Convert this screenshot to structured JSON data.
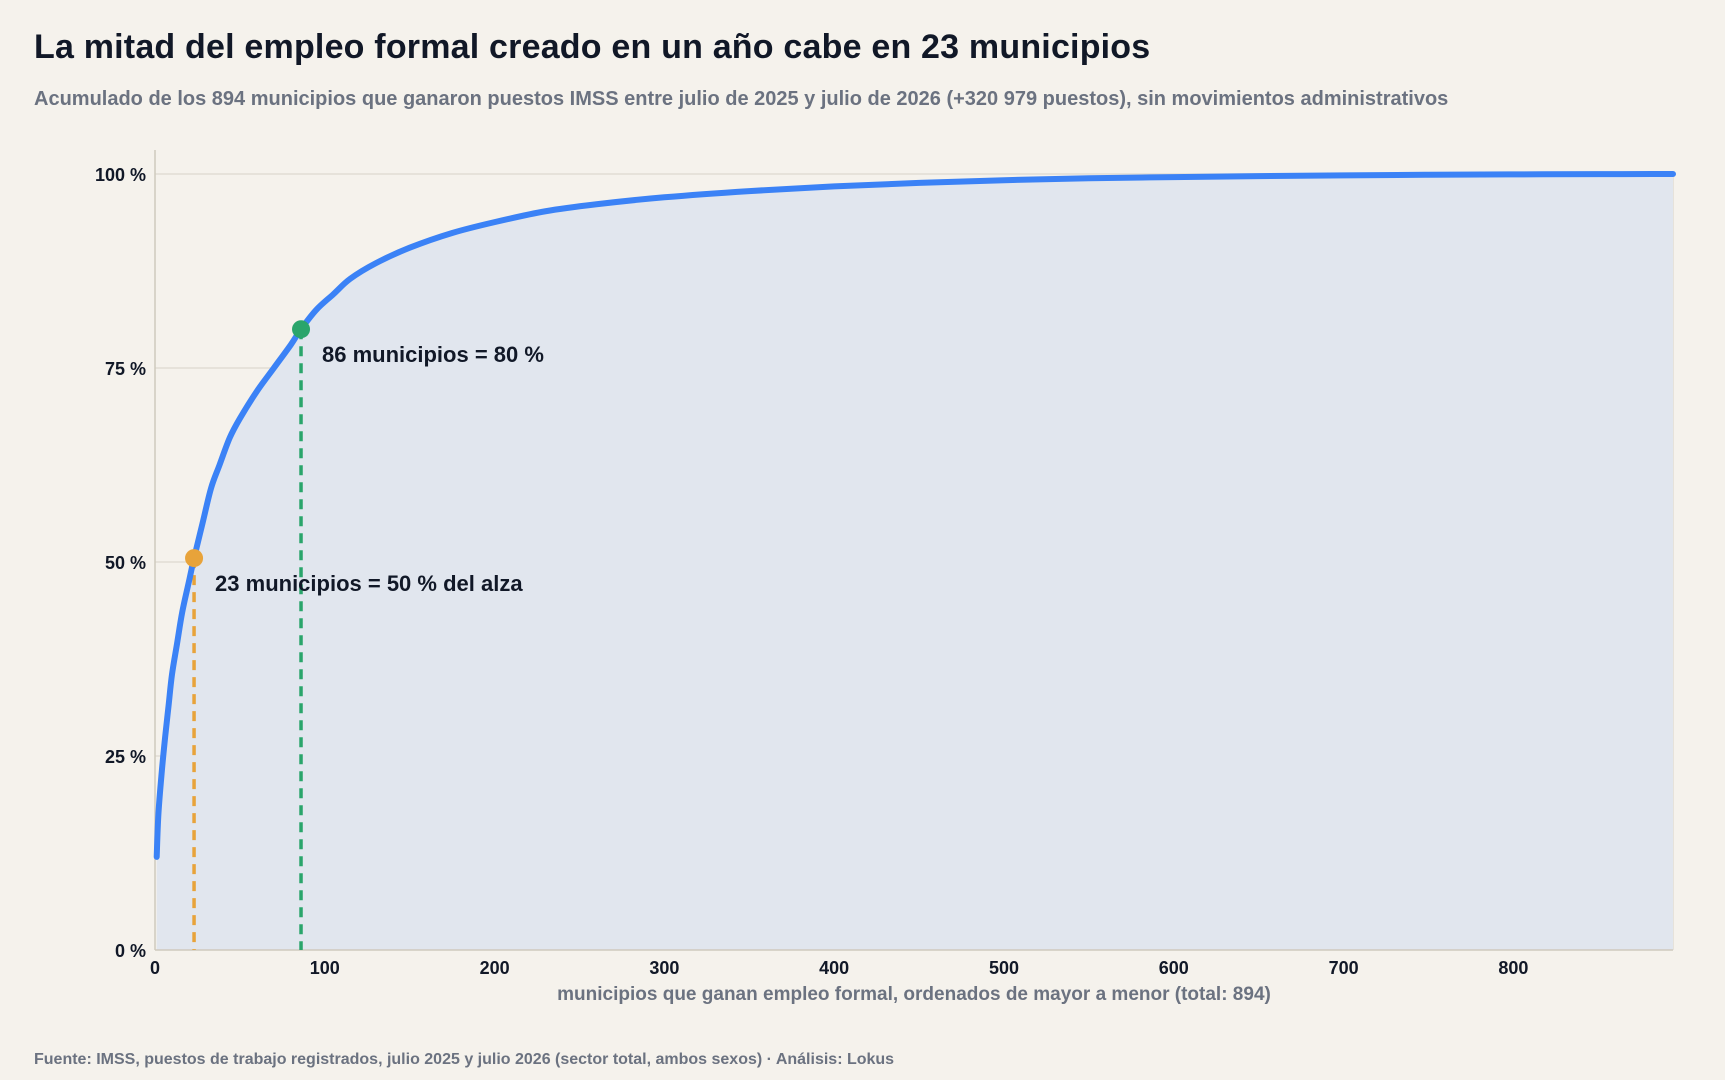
{
  "title": "La mitad del empleo formal creado en un año cabe en 23 municipios",
  "subtitle": "Acumulado de los 894 municipios que ganaron puestos IMSS entre julio de 2025 y julio de 2026 (+320 979 puestos), sin movimientos administrativos",
  "footer": "Fuente: IMSS, puestos de trabajo registrados, julio 2025 y julio 2026 (sector total, ambos sexos) · Análisis: Lokus",
  "colors": {
    "background": "#f5f2ec",
    "curve": "#3b82f6",
    "area": "#e1e6ee",
    "marker50": "#e8a33a",
    "marker80": "#2aa56b",
    "grid": "#e2ddd3"
  },
  "chart_data": {
    "type": "area",
    "xlabel": "municipios que ganan empleo formal, ordenados de mayor a menor (total: 894)",
    "ylabel": "",
    "xlim": [
      0,
      894
    ],
    "ylim": [
      0,
      100
    ],
    "x_ticks": [
      0,
      100,
      200,
      300,
      400,
      500,
      600,
      700,
      800
    ],
    "y_ticks": [
      0,
      25,
      50,
      75,
      100
    ],
    "y_tick_labels": [
      "0 %",
      "25 %",
      "50 %",
      "75 %",
      "100 %"
    ],
    "grid": "horizontal",
    "series": [
      {
        "x": [
          1,
          2,
          4,
          6,
          8,
          10,
          13,
          16,
          20,
          23,
          28,
          33,
          38,
          44,
          50,
          60,
          70,
          80,
          86,
          95,
          105,
          115,
          130,
          150,
          175,
          200,
          230,
          260,
          300,
          350,
          400,
          450,
          500,
          550,
          600,
          650,
          700,
          750,
          800,
          850,
          894
        ],
        "y": [
          12,
          17.5,
          23,
          27.5,
          31.5,
          35.5,
          39.5,
          43.5,
          47.5,
          50.5,
          55,
          59.5,
          62.5,
          66,
          68.5,
          72,
          75,
          78,
          80,
          82.5,
          84.5,
          86.5,
          88.5,
          90.5,
          92.4,
          93.8,
          95.2,
          96.1,
          97.0,
          97.8,
          98.4,
          98.85,
          99.2,
          99.45,
          99.6,
          99.73,
          99.83,
          99.9,
          99.95,
          99.98,
          100
        ]
      }
    ],
    "annotations": [
      {
        "x": 23,
        "y": 50.5,
        "text": "23 municipios = 50 % del alza"
      },
      {
        "x": 86,
        "y": 80,
        "text": "86 municipios = 80 %"
      }
    ]
  }
}
